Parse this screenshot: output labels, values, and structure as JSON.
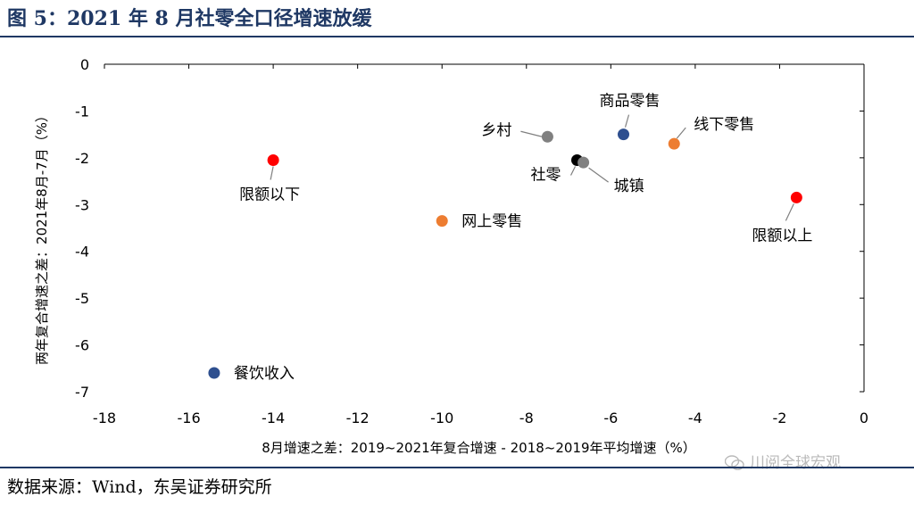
{
  "header": {
    "title": "图 5：2021 年 8 月社零全口径增速放缓"
  },
  "footer": {
    "source": "数据来源：Wind，东吴证券研究所",
    "watermark": "川阅全球宏观"
  },
  "chart_data": {
    "type": "scatter",
    "title": "",
    "xlabel": "8月增速之差：2019~2021年复合增速 - 2018~2019年平均增速（%）",
    "ylabel": "两年复合增速之差：2021年8月-7月（%）",
    "xlim": [
      -18,
      0
    ],
    "ylim": [
      -7,
      0
    ],
    "xticks": [
      -18,
      -16,
      -14,
      -12,
      -10,
      -8,
      -6,
      -4,
      -2,
      0
    ],
    "yticks": [
      0,
      -1,
      -2,
      -3,
      -4,
      -5,
      -6,
      -7
    ],
    "grid": false,
    "legend": "none",
    "points": [
      {
        "label": "商品零售",
        "x": -5.7,
        "y": -1.5,
        "color": "#2e4f8f"
      },
      {
        "label": "乡村",
        "x": -7.5,
        "y": -1.55,
        "color": "#808080"
      },
      {
        "label": "线下零售",
        "x": -4.5,
        "y": -1.7,
        "color": "#ed7d31"
      },
      {
        "label": "限额以下",
        "x": -14.0,
        "y": -2.05,
        "color": "#ff0000"
      },
      {
        "label": "社零",
        "x": -6.8,
        "y": -2.05,
        "color": "#000000"
      },
      {
        "label": "城镇",
        "x": -6.65,
        "y": -2.1,
        "color": "#808080"
      },
      {
        "label": "限额以上",
        "x": -1.6,
        "y": -2.85,
        "color": "#ff0000"
      },
      {
        "label": "网上零售",
        "x": -10.0,
        "y": -3.35,
        "color": "#ed7d31"
      },
      {
        "label": "餐饮收入",
        "x": -15.4,
        "y": -6.6,
        "color": "#2e4f8f"
      }
    ]
  }
}
